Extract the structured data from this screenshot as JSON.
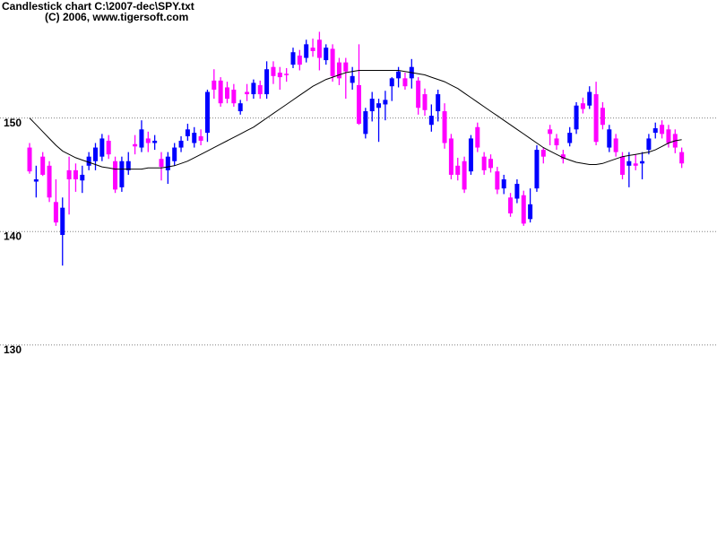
{
  "chart_data": {
    "type": "candlestick",
    "title": "Candlestick chart C:\\2007-dec\\SPY.txt",
    "subtitle": "(C) 2006, www.tigersoft.com",
    "ylim": [
      113,
      160.4
    ],
    "yticks": [
      130,
      140,
      150
    ],
    "grid": true,
    "up_color": "#0000ff",
    "down_color": "#ff00ff",
    "open": [
      147.4,
      144.4,
      146.6,
      145.8,
      142.6,
      139.7,
      145.4,
      145.4,
      144.5,
      145.8,
      146.2,
      146.6,
      148,
      146.2,
      143.9,
      145.4,
      147.7,
      147.4,
      148.2,
      147.8,
      146.4,
      145.4,
      146.2,
      147.4,
      148.4,
      147.8,
      148.4,
      148.7,
      153.3,
      153.3,
      152.7,
      152.5,
      150.6,
      152.3,
      152.1,
      152.9,
      152.1,
      154.5,
      154,
      153.9,
      154.7,
      155.5,
      155.3,
      156.2,
      156.9,
      155.1,
      156.1,
      154.9,
      154.9,
      153.1,
      152.9,
      148.6,
      150.6,
      150.9,
      151.2,
      152.8,
      153.5,
      153.5,
      153.5,
      153.3,
      152.1,
      149.4,
      150.6,
      150.6,
      148.2,
      145.8,
      146.2,
      145.3,
      149.2,
      146.6,
      146.4,
      145.3,
      143.8,
      143,
      142.9,
      143.2,
      141.1,
      143.8,
      147.2,
      149,
      148.2,
      146.8,
      147.8,
      149,
      151.3,
      151.1,
      152.1,
      150.9,
      147.4,
      148.2,
      146.6,
      145.8,
      146,
      146,
      147.2,
      148.7,
      149.4,
      149,
      148.6,
      147
    ],
    "high": [
      147.8,
      145.8,
      147,
      146.2,
      144.6,
      143,
      146.6,
      146,
      145.8,
      147,
      147.8,
      148.6,
      148.5,
      146.6,
      146.6,
      147,
      148.5,
      149.8,
      148.8,
      148.5,
      147,
      147,
      147.8,
      148.4,
      149.5,
      149.2,
      149,
      152.5,
      154.3,
      153.6,
      153.2,
      153,
      151.6,
      153,
      153.4,
      153.3,
      155,
      155,
      154.5,
      154.4,
      156.2,
      156,
      156.9,
      157,
      157.6,
      156.5,
      156.5,
      155.3,
      155.3,
      154.5,
      156.5,
      150.9,
      152.3,
      151.7,
      152.4,
      153.6,
      154.5,
      154,
      155.2,
      153.6,
      152.6,
      151.2,
      152.5,
      151.3,
      148.6,
      146.5,
      146.6,
      148.5,
      149.6,
      147,
      146.8,
      145.7,
      145,
      143.4,
      144.6,
      143.6,
      143.8,
      147.6,
      147.4,
      149.4,
      148.6,
      147.2,
      149.2,
      151.4,
      151.8,
      152.8,
      153.2,
      151.4,
      149.4,
      148.6,
      147,
      147,
      146.8,
      147,
      148.6,
      149.6,
      149.8,
      149.4,
      149,
      147.4
    ],
    "low": [
      145.1,
      143,
      144.9,
      142.6,
      140.5,
      137,
      141.5,
      143.5,
      143.4,
      145.4,
      145.4,
      146.2,
      146.4,
      143.4,
      143.5,
      145,
      146.8,
      147,
      147,
      147.2,
      144.5,
      144.2,
      145.8,
      147,
      148,
      147.4,
      147.6,
      147.9,
      151.7,
      151,
      151.3,
      151,
      150.3,
      151.5,
      151.7,
      151.7,
      151.7,
      153,
      152.5,
      153.2,
      154.4,
      154.2,
      154.9,
      155.4,
      154.2,
      154.7,
      153.2,
      152.9,
      151.7,
      152.5,
      149.4,
      148.2,
      149.7,
      147.9,
      149.8,
      151.5,
      152.7,
      152.5,
      152.6,
      150.3,
      150.2,
      148.8,
      149.7,
      147.3,
      144.6,
      144.5,
      143.4,
      145,
      147,
      145,
      145.2,
      143.3,
      143.3,
      141.3,
      142.5,
      140.5,
      140.8,
      143.5,
      146,
      147.6,
      147.2,
      146,
      147.5,
      148.6,
      150.4,
      150.8,
      147.6,
      149,
      147,
      146.6,
      144.6,
      143.9,
      145.4,
      144.6,
      146.8,
      148.2,
      148.2,
      147.4,
      146.9,
      145.6
    ],
    "close": [
      145.3,
      144.6,
      145,
      143,
      140.8,
      142.1,
      144.6,
      144.6,
      145,
      146.6,
      147.4,
      148.2,
      146.8,
      143.7,
      146.2,
      146.2,
      147.5,
      149,
      147.8,
      148,
      145.7,
      146.6,
      147.4,
      148,
      149,
      148.7,
      148,
      152.3,
      152.5,
      151.3,
      151.7,
      151.3,
      151.3,
      152.1,
      153.1,
      152.1,
      154.3,
      153.7,
      153.6,
      153.8,
      155.8,
      154.7,
      156.5,
      155.9,
      155.3,
      156.2,
      153.7,
      153.5,
      154.1,
      153.7,
      149.5,
      150.6,
      151.7,
      151.3,
      151.6,
      153.5,
      154.1,
      152.8,
      154.5,
      150.9,
      150.7,
      150.2,
      152.1,
      147.8,
      145,
      145,
      143.7,
      148.2,
      147.4,
      145.4,
      145.6,
      143.7,
      144.6,
      141.6,
      144.2,
      140.7,
      142.4,
      147.2,
      146.6,
      148.6,
      147.6,
      146.4,
      148.7,
      151.1,
      150.8,
      152.3,
      147.9,
      149.4,
      149,
      147,
      145,
      146.2,
      145.8,
      146.2,
      148.2,
      149.1,
      148.6,
      147.8,
      147.4,
      146
    ],
    "ma": {
      "color": "#000000",
      "values": [
        150,
        149.4,
        148.8,
        148.2,
        147.6,
        147.1,
        146.8,
        146.5,
        146.3,
        146.1,
        145.9,
        145.7,
        145.6,
        145.5,
        145.5,
        145.5,
        145.5,
        145.5,
        145.6,
        145.6,
        145.6,
        145.7,
        145.8,
        146.0,
        146.2,
        146.5,
        146.8,
        147.1,
        147.4,
        147.7,
        148.0,
        148.3,
        148.6,
        148.9,
        149.2,
        149.6,
        150.0,
        150.4,
        150.8,
        151.2,
        151.6,
        152.0,
        152.4,
        152.8,
        153.1,
        153.4,
        153.6,
        153.8,
        154.0,
        154.1,
        154.2,
        154.2,
        154.2,
        154.2,
        154.2,
        154.2,
        154.2,
        154.1,
        154.0,
        153.9,
        153.8,
        153.6,
        153.4,
        153.2,
        152.9,
        152.6,
        152.2,
        151.8,
        151.4,
        151.0,
        150.6,
        150.2,
        149.8,
        149.4,
        149.0,
        148.6,
        148.2,
        147.8,
        147.4,
        147.1,
        146.8,
        146.5,
        146.3,
        146.1,
        146.0,
        145.9,
        145.9,
        146.0,
        146.2,
        146.4,
        146.6,
        146.7,
        146.8,
        146.9,
        147.0,
        147.2,
        147.5,
        147.8,
        148.0,
        148.1
      ]
    }
  }
}
